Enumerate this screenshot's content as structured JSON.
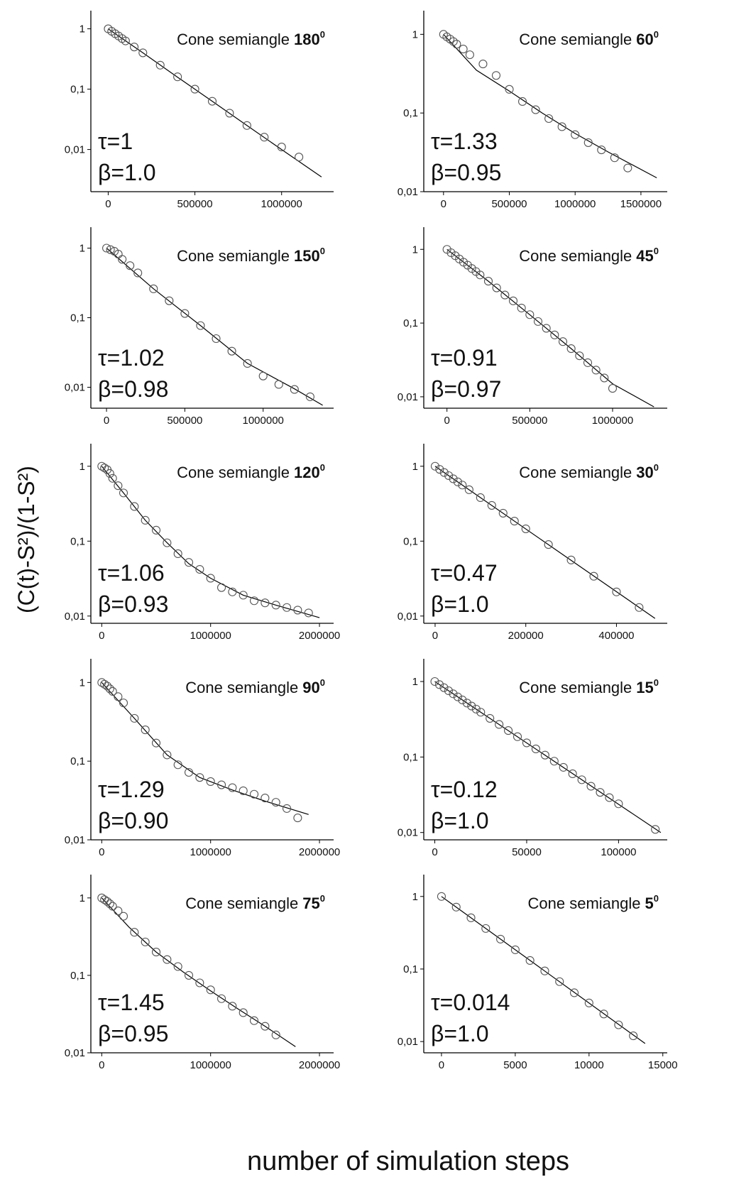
{
  "ylabel": "(C(t)-S²)/(1-S²)",
  "xlabel": "number of simulation steps",
  "chart_data": [
    {
      "type": "scatter",
      "title": "Cone semiangle",
      "title_angle": "180",
      "title_sup": "0",
      "annotations": [
        "τ=1",
        "β=1.0"
      ],
      "log_y": true,
      "marker_color": "#555555",
      "line_color": "#000000",
      "xlim": [
        -100000,
        1300000
      ],
      "xticks": [
        0,
        500000,
        1000000
      ],
      "ylim": [
        0.002,
        2
      ],
      "yticks": [
        1,
        {
          "value": 0.1,
          "label": "0,1"
        },
        {
          "value": 0.01,
          "label": "0,01"
        }
      ],
      "points": {
        "x": [
          0,
          20000,
          40000,
          60000,
          80000,
          100000,
          150000,
          200000,
          300000,
          400000,
          500000,
          600000,
          700000,
          800000,
          900000,
          1000000,
          1100000
        ],
        "y": [
          1,
          0.91,
          0.83,
          0.76,
          0.69,
          0.63,
          0.5,
          0.4,
          0.25,
          0.16,
          0.1,
          0.063,
          0.04,
          0.025,
          0.016,
          0.011,
          0.0075
        ]
      },
      "fit": {
        "x": [
          0,
          200000,
          400000,
          600000,
          800000,
          1000000,
          1230000
        ],
        "y": [
          1,
          0.4,
          0.158,
          0.063,
          0.025,
          0.01,
          0.0035
        ]
      }
    },
    {
      "type": "scatter",
      "title": "Cone semiangle",
      "title_angle": "60",
      "title_sup": "0",
      "annotations": [
        "τ=1.33",
        "β=0.95"
      ],
      "log_y": true,
      "marker_color": "#555555",
      "line_color": "#000000",
      "xlim": [
        -150000,
        1700000
      ],
      "xticks": [
        0,
        500000,
        1000000,
        1500000
      ],
      "ylim": [
        0.01,
        2
      ],
      "yticks": [
        1,
        {
          "value": 0.1,
          "label": "0,1"
        },
        {
          "value": 0.01,
          "label": "0,01"
        }
      ],
      "points": {
        "x": [
          0,
          25000,
          50000,
          75000,
          100000,
          150000,
          200000,
          300000,
          400000,
          500000,
          600000,
          700000,
          800000,
          900000,
          1000000,
          1100000,
          1200000,
          1300000,
          1400000
        ],
        "y": [
          1,
          0.93,
          0.87,
          0.81,
          0.75,
          0.65,
          0.55,
          0.42,
          0.3,
          0.2,
          0.14,
          0.11,
          0.085,
          0.067,
          0.053,
          0.042,
          0.034,
          0.027,
          0.02
        ]
      },
      "fit": {
        "x": [
          0,
          250000,
          500000,
          750000,
          1000000,
          1250000,
          1620000
        ],
        "y": [
          1,
          0.35,
          0.19,
          0.1,
          0.055,
          0.032,
          0.015
        ]
      }
    },
    {
      "type": "scatter",
      "title": "Cone semiangle",
      "title_angle": "150",
      "title_sup": "0",
      "annotations": [
        "τ=1.02",
        "β=0.98"
      ],
      "log_y": true,
      "marker_color": "#555555",
      "line_color": "#000000",
      "xlim": [
        -100000,
        1450000
      ],
      "xticks": [
        0,
        500000,
        1000000
      ],
      "ylim": [
        0.005,
        2
      ],
      "yticks": [
        1,
        {
          "value": 0.1,
          "label": "0,1"
        },
        {
          "value": 0.01,
          "label": "0,01"
        }
      ],
      "points": {
        "x": [
          0,
          25000,
          50000,
          75000,
          100000,
          150000,
          200000,
          300000,
          400000,
          500000,
          600000,
          700000,
          800000,
          900000,
          1000000,
          1100000,
          1200000,
          1300000
        ],
        "y": [
          1,
          0.95,
          0.9,
          0.82,
          0.69,
          0.56,
          0.44,
          0.26,
          0.175,
          0.115,
          0.077,
          0.05,
          0.033,
          0.022,
          0.0145,
          0.011,
          0.0093,
          0.0073
        ]
      },
      "fit": {
        "x": [
          0,
          300000,
          600000,
          900000,
          1200000,
          1380000
        ],
        "y": [
          1,
          0.26,
          0.077,
          0.022,
          0.0095,
          0.0055
        ]
      }
    },
    {
      "type": "scatter",
      "title": "Cone semiangle",
      "title_angle": "45",
      "title_sup": "0",
      "annotations": [
        "τ=0.91",
        "β=0.97"
      ],
      "log_y": true,
      "marker_color": "#555555",
      "line_color": "#000000",
      "xlim": [
        -140000,
        1330000
      ],
      "xticks": [
        0,
        500000,
        1000000
      ],
      "ylim": [
        0.007,
        2
      ],
      "yticks": [
        1,
        {
          "value": 0.1,
          "label": "0,1"
        },
        {
          "value": 0.01,
          "label": "0,01"
        }
      ],
      "points": {
        "x": [
          0,
          25000,
          50000,
          75000,
          100000,
          125000,
          150000,
          175000,
          200000,
          250000,
          300000,
          350000,
          400000,
          450000,
          500000,
          550000,
          600000,
          650000,
          700000,
          750000,
          800000,
          850000,
          900000,
          950000,
          1000000
        ],
        "y": [
          1,
          0.9,
          0.82,
          0.74,
          0.67,
          0.61,
          0.55,
          0.5,
          0.45,
          0.37,
          0.3,
          0.24,
          0.2,
          0.16,
          0.13,
          0.105,
          0.085,
          0.069,
          0.056,
          0.045,
          0.036,
          0.029,
          0.023,
          0.018,
          0.013
        ]
      },
      "fit": {
        "x": [
          0,
          250000,
          500000,
          750000,
          1000000,
          1250000
        ],
        "y": [
          1,
          0.37,
          0.13,
          0.045,
          0.015,
          0.0073
        ]
      }
    },
    {
      "type": "scatter",
      "title": "Cone semiangle",
      "title_angle": "120",
      "title_sup": "0",
      "annotations": [
        "τ=1.06",
        "β=0.93"
      ],
      "log_y": true,
      "marker_color": "#555555",
      "line_color": "#000000",
      "xlim": [
        -100000,
        2130000
      ],
      "xticks": [
        0,
        1000000,
        2000000
      ],
      "ylim": [
        0.008,
        2
      ],
      "yticks": [
        1,
        {
          "value": 0.1,
          "label": "0,1"
        },
        {
          "value": 0.01,
          "label": "0,01"
        }
      ],
      "points": {
        "x": [
          0,
          25000,
          50000,
          75000,
          100000,
          150000,
          200000,
          300000,
          400000,
          500000,
          600000,
          700000,
          800000,
          900000,
          1000000,
          1100000,
          1200000,
          1300000,
          1400000,
          1500000,
          1600000,
          1700000,
          1800000,
          1900000
        ],
        "y": [
          1,
          0.95,
          0.9,
          0.8,
          0.69,
          0.55,
          0.44,
          0.29,
          0.19,
          0.14,
          0.095,
          0.068,
          0.052,
          0.042,
          0.032,
          0.024,
          0.021,
          0.019,
          0.016,
          0.015,
          0.014,
          0.013,
          0.012,
          0.011
        ]
      },
      "fit": {
        "x": [
          0,
          200000,
          400000,
          600000,
          800000,
          1000000,
          1300000,
          1600000,
          2000000
        ],
        "y": [
          1,
          0.44,
          0.19,
          0.095,
          0.05,
          0.032,
          0.019,
          0.014,
          0.0095
        ]
      }
    },
    {
      "type": "scatter",
      "title": "Cone semiangle",
      "title_angle": "30",
      "title_sup": "0",
      "annotations": [
        "τ=0.47",
        "β=1.0"
      ],
      "log_y": true,
      "marker_color": "#555555",
      "line_color": "#000000",
      "xlim": [
        -25000,
        512000
      ],
      "xticks": [
        0,
        200000,
        400000
      ],
      "ylim": [
        0.008,
        2
      ],
      "yticks": [
        1,
        {
          "value": 0.1,
          "label": "0,1"
        },
        {
          "value": 0.01,
          "label": "0,01"
        }
      ],
      "points": {
        "x": [
          0,
          10000,
          20000,
          30000,
          40000,
          50000,
          60000,
          75000,
          100000,
          125000,
          150000,
          175000,
          200000,
          250000,
          300000,
          350000,
          400000,
          450000
        ],
        "y": [
          1,
          0.908,
          0.825,
          0.749,
          0.68,
          0.618,
          0.561,
          0.486,
          0.381,
          0.3,
          0.236,
          0.185,
          0.146,
          0.09,
          0.056,
          0.034,
          0.021,
          0.013
        ]
      },
      "fit": {
        "x": [
          0,
          485000
        ],
        "y": [
          1,
          0.0093
        ]
      }
    },
    {
      "type": "scatter",
      "title": "Cone semiangle",
      "title_angle": "90",
      "title_sup": "0",
      "annotations": [
        "τ=1.29",
        "β=0.90"
      ],
      "log_y": true,
      "marker_color": "#555555",
      "line_color": "#000000",
      "xlim": [
        -100000,
        2130000
      ],
      "xticks": [
        0,
        1000000,
        2000000
      ],
      "ylim": [
        0.01,
        2
      ],
      "yticks": [
        1,
        {
          "value": 0.1,
          "label": "0,1"
        },
        {
          "value": 0.01,
          "label": "0,01"
        }
      ],
      "points": {
        "x": [
          0,
          25000,
          50000,
          75000,
          100000,
          150000,
          200000,
          300000,
          400000,
          500000,
          600000,
          700000,
          800000,
          900000,
          1000000,
          1100000,
          1200000,
          1300000,
          1400000,
          1500000,
          1600000,
          1700000,
          1800000
        ],
        "y": [
          1,
          0.95,
          0.9,
          0.83,
          0.77,
          0.66,
          0.55,
          0.35,
          0.25,
          0.17,
          0.12,
          0.09,
          0.072,
          0.062,
          0.055,
          0.05,
          0.046,
          0.042,
          0.038,
          0.034,
          0.03,
          0.025,
          0.019
        ]
      },
      "fit": {
        "x": [
          0,
          300000,
          600000,
          900000,
          1200000,
          1500000,
          1900000
        ],
        "y": [
          1,
          0.35,
          0.12,
          0.062,
          0.043,
          0.031,
          0.021
        ]
      }
    },
    {
      "type": "scatter",
      "title": "Cone semiangle",
      "title_angle": "15",
      "title_sup": "0",
      "annotations": [
        "τ=0.12",
        "β=1.0"
      ],
      "log_y": true,
      "marker_color": "#555555",
      "line_color": "#000000",
      "xlim": [
        -6000,
        126500
      ],
      "xticks": [
        0,
        50000,
        100000
      ],
      "ylim": [
        0.008,
        2
      ],
      "yticks": [
        1,
        {
          "value": 0.1,
          "label": "0,1"
        },
        {
          "value": 0.01,
          "label": "0,01"
        }
      ],
      "points": {
        "x": [
          0,
          2500,
          5000,
          7500,
          10000,
          12500,
          15000,
          17500,
          20000,
          22500,
          25000,
          30000,
          35000,
          40000,
          45000,
          50000,
          55000,
          60000,
          65000,
          70000,
          75000,
          80000,
          85000,
          90000,
          95000,
          100000,
          120000
        ],
        "y": [
          1,
          0.911,
          0.829,
          0.755,
          0.688,
          0.626,
          0.57,
          0.519,
          0.473,
          0.431,
          0.392,
          0.325,
          0.27,
          0.224,
          0.186,
          0.154,
          0.128,
          0.106,
          0.088,
          0.073,
          0.06,
          0.05,
          0.041,
          0.034,
          0.029,
          0.024,
          0.011
        ]
      },
      "fit": {
        "x": [
          0,
          123000
        ],
        "y": [
          1,
          0.01
        ]
      }
    },
    {
      "type": "scatter",
      "title": "Cone semiangle",
      "title_angle": "75",
      "title_sup": "0",
      "annotations": [
        "τ=1.45",
        "β=0.95"
      ],
      "log_y": true,
      "marker_color": "#555555",
      "line_color": "#000000",
      "xlim": [
        -100000,
        2130000
      ],
      "xticks": [
        0,
        1000000,
        2000000
      ],
      "ylim": [
        0.01,
        2
      ],
      "yticks": [
        1,
        {
          "value": 0.1,
          "label": "0,1"
        },
        {
          "value": 0.01,
          "label": "0,01"
        }
      ],
      "points": {
        "x": [
          0,
          25000,
          50000,
          75000,
          100000,
          150000,
          200000,
          300000,
          400000,
          500000,
          600000,
          700000,
          800000,
          900000,
          1000000,
          1100000,
          1200000,
          1300000,
          1400000,
          1500000,
          1600000
        ],
        "y": [
          1,
          0.95,
          0.9,
          0.84,
          0.78,
          0.68,
          0.58,
          0.36,
          0.27,
          0.2,
          0.16,
          0.13,
          0.1,
          0.08,
          0.065,
          0.05,
          0.04,
          0.033,
          0.026,
          0.022,
          0.017
        ]
      },
      "fit": {
        "x": [
          0,
          250000,
          500000,
          750000,
          1000000,
          1250000,
          1500000,
          1780000
        ],
        "y": [
          1,
          0.42,
          0.2,
          0.11,
          0.063,
          0.037,
          0.022,
          0.012
        ]
      }
    },
    {
      "type": "scatter",
      "title": "Cone semiangle",
      "title_angle": "5",
      "title_sup": "0",
      "annotations": [
        "τ=0.014",
        "β=1.0"
      ],
      "log_y": true,
      "marker_color": "#555555",
      "line_color": "#000000",
      "xlim": [
        -1200,
        15300
      ],
      "xticks": [
        0,
        5000,
        10000,
        15000
      ],
      "ylim": [
        0.007,
        2
      ],
      "yticks": [
        1,
        {
          "value": 0.1,
          "label": "0,1"
        },
        {
          "value": 0.01,
          "label": "0,01"
        }
      ],
      "points": {
        "x": [
          0,
          1000,
          2000,
          3000,
          4000,
          5000,
          6000,
          7000,
          8000,
          9000,
          10000,
          11000,
          12000,
          13000
        ],
        "y": [
          1,
          0.713,
          0.508,
          0.362,
          0.258,
          0.184,
          0.131,
          0.094,
          0.067,
          0.047,
          0.034,
          0.024,
          0.017,
          0.012
        ]
      },
      "fit": {
        "x": [
          0,
          13800
        ],
        "y": [
          1,
          0.0094
        ]
      }
    }
  ]
}
